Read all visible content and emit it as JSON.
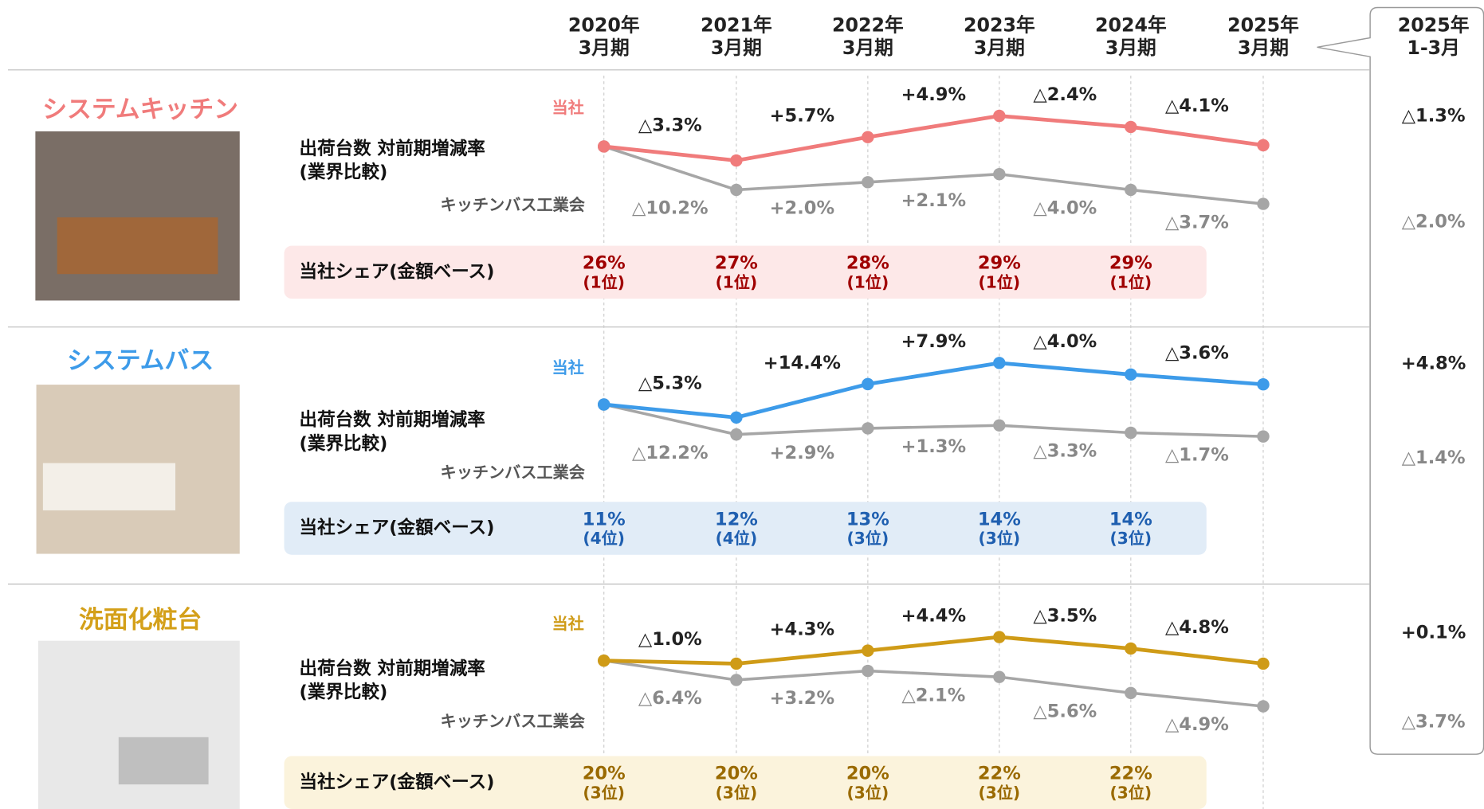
{
  "header": {
    "periods": [
      [
        "2020年",
        "3月期"
      ],
      [
        "2021年",
        "3月期"
      ],
      [
        "2022年",
        "3月期"
      ],
      [
        "2023年",
        "3月期"
      ],
      [
        "2024年",
        "3月期"
      ],
      [
        "2025年",
        "3月期"
      ]
    ],
    "latest_period": [
      "2025年",
      "1-3月"
    ]
  },
  "chart_data": [
    {
      "type": "line",
      "title": "システムキッチン",
      "title_color": "#f07b7b",
      "subtitle": [
        "出荷台数 対前期増減率",
        "(業界比較)"
      ],
      "ylim": [
        80,
        120
      ],
      "series": [
        {
          "name": "当社",
          "color": "#f07b7b",
          "values": [
            100,
            96.7,
            102.2,
            107.2,
            104.6,
            100.3
          ],
          "value_labels": [
            null,
            "△3.3%",
            "+5.7%",
            "+4.9%",
            "△2.4%",
            "△4.1%"
          ],
          "latest": "△1.3%"
        },
        {
          "name": "キッチンバス工業会",
          "color": "#a6a6a6",
          "values": [
            100,
            89.8,
            91.6,
            93.5,
            89.8,
            86.5
          ],
          "value_labels": [
            null,
            "△10.2%",
            "+2.0%",
            "+2.1%",
            "△4.0%",
            "△3.7%"
          ],
          "latest": "△2.0%"
        }
      ],
      "share": {
        "label": "当社シェア(金額ベース)",
        "values": [
          "26%",
          "27%",
          "28%",
          "29%",
          "29%"
        ],
        "ranks": [
          "(1位)",
          "(1位)",
          "(1位)",
          "(1位)",
          "(1位)"
        ],
        "color": "#a00000",
        "background": "#fde8e8"
      }
    },
    {
      "type": "line",
      "title": "システムバス",
      "title_color": "#3d9be9",
      "subtitle": [
        "出荷台数 対前期増減率",
        "(業界比較)"
      ],
      "ylim": [
        80,
        125
      ],
      "series": [
        {
          "name": "当社",
          "color": "#3d9be9",
          "values": [
            100,
            94.7,
            108.3,
            116.9,
            112.2,
            108.2
          ],
          "value_labels": [
            null,
            "△5.3%",
            "+14.4%",
            "+7.9%",
            "△4.0%",
            "△3.6%"
          ],
          "latest": "+4.8%"
        },
        {
          "name": "キッチンバス工業会",
          "color": "#a6a6a6",
          "values": [
            100,
            87.8,
            90.3,
            91.5,
            88.5,
            87.0
          ],
          "value_labels": [
            null,
            "△12.2%",
            "+2.9%",
            "+1.3%",
            "△3.3%",
            "△1.7%"
          ],
          "latest": "△1.4%"
        }
      ],
      "share": {
        "label": "当社シェア(金額ベース)",
        "values": [
          "11%",
          "12%",
          "13%",
          "14%",
          "14%"
        ],
        "ranks": [
          "(4位)",
          "(4位)",
          "(3位)",
          "(3位)",
          "(3位)"
        ],
        "color": "#1f5fb0",
        "background": "#e1ecf7"
      }
    },
    {
      "type": "line",
      "title": "洗面化粧台",
      "title_color": "#d4a01a",
      "subtitle": [
        "出荷台数 対前期増減率",
        "(業界比較)"
      ],
      "ylim": [
        80,
        115
      ],
      "series": [
        {
          "name": "当社",
          "color": "#cf9b17",
          "values": [
            100,
            99.0,
            103.3,
            107.8,
            104.0,
            99.0
          ],
          "value_labels": [
            null,
            "△1.0%",
            "+4.3%",
            "+4.4%",
            "△3.5%",
            "△4.8%"
          ],
          "latest": "+0.1%"
        },
        {
          "name": "キッチンバス工業会",
          "color": "#a6a6a6",
          "values": [
            100,
            93.6,
            96.6,
            94.6,
            89.3,
            84.9
          ],
          "value_labels": [
            null,
            "△6.4%",
            "+3.2%",
            "△2.1%",
            "△5.6%",
            "△4.9%"
          ],
          "latest": "△3.7%"
        }
      ],
      "share": {
        "label": "当社シェア(金額ベース)",
        "values": [
          "20%",
          "20%",
          "20%",
          "22%",
          "22%"
        ],
        "ranks": [
          "(3位)",
          "(3位)",
          "(3位)",
          "(3位)",
          "(3位)"
        ],
        "color": "#9a6a00",
        "background": "#fbf3dc"
      }
    }
  ]
}
